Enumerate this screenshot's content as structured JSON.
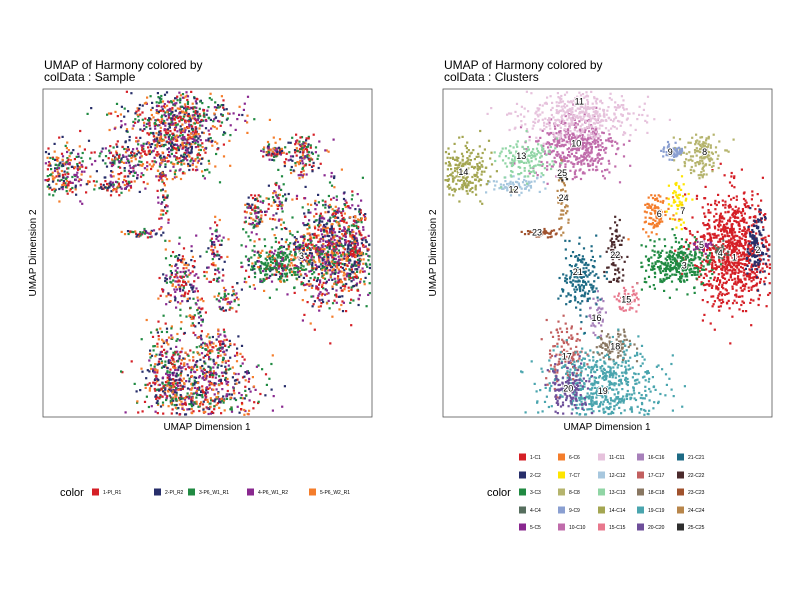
{
  "chart_data": [
    {
      "type": "scatter",
      "title_line1": "UMAP of Harmony  colored by",
      "title_line2": "colData :  Sample",
      "xlabel": "UMAP Dimension 1",
      "ylabel": "UMAP Dimension 2",
      "legend": {
        "title": "color",
        "placement": "bottom",
        "entries": [
          {
            "label": "1-PI_R1",
            "color": "#D51F26"
          },
          {
            "label": "2-PI_R2",
            "color": "#272E6A"
          },
          {
            "label": "3-P6_W1_R1",
            "color": "#208A42"
          },
          {
            "label": "4-P6_W1_R2",
            "color": "#89288F"
          },
          {
            "label": "5-P6_W2_R1",
            "color": "#F47D2B"
          }
        ]
      },
      "cluster_labels": [
        {
          "text": "3",
          "x": 18.0,
          "y": -5.0
        }
      ],
      "grid": false,
      "axis_ticks": false
    },
    {
      "type": "scatter",
      "title_line1": "UMAP of Harmony  colored by",
      "title_line2": "colData :  Clusters",
      "xlabel": "UMAP Dimension 1",
      "ylabel": "UMAP Dimension 2",
      "legend": {
        "title": "color",
        "placement": "bottom",
        "entries": [
          {
            "label": "1-C1",
            "color": "#D51F26"
          },
          {
            "label": "2-C2",
            "color": "#272E6A"
          },
          {
            "label": "3-C3",
            "color": "#208A42"
          },
          {
            "label": "4-C4",
            "color": "#566E5E"
          },
          {
            "label": "5-C5",
            "color": "#89288F"
          },
          {
            "label": "6-C6",
            "color": "#F47D2B"
          },
          {
            "label": "7-C7",
            "color": "#FEE500"
          },
          {
            "label": "8-C8",
            "color": "#B5B46D"
          },
          {
            "label": "9-C9",
            "color": "#8A9FD1"
          },
          {
            "label": "10-C10",
            "color": "#C06CAB"
          },
          {
            "label": "11-C11",
            "color": "#E6C2DC"
          },
          {
            "label": "12-C12",
            "color": "#A7C7DE"
          },
          {
            "label": "13-C13",
            "color": "#90D5A5"
          },
          {
            "label": "14-C14",
            "color": "#A4A652"
          },
          {
            "label": "15-C15",
            "color": "#E8788D"
          },
          {
            "label": "16-C16",
            "color": "#A780BA"
          },
          {
            "label": "17-C17",
            "color": "#C25F5F"
          },
          {
            "label": "18-C18",
            "color": "#897762"
          },
          {
            "label": "19-C19",
            "color": "#4AA5AE"
          },
          {
            "label": "20-C20",
            "color": "#6E4F9A"
          },
          {
            "label": "21-C21",
            "color": "#1D6A84"
          },
          {
            "label": "22-C22",
            "color": "#4B2A2C"
          },
          {
            "label": "23-C23",
            "color": "#A0522D"
          },
          {
            "label": "24-C24",
            "color": "#B8864B"
          },
          {
            "label": "25-C25",
            "color": "#2E2E2E"
          }
        ]
      },
      "cluster_labels": [
        {
          "text": "1",
          "x": 22.2,
          "y": -5.2
        },
        {
          "text": "2",
          "x": 25.2,
          "y": -4.0
        },
        {
          "text": "3",
          "x": 15.8,
          "y": -6.5
        },
        {
          "text": "4",
          "x": 20.4,
          "y": -4.5
        },
        {
          "text": "5",
          "x": 18.0,
          "y": -3.2
        },
        {
          "text": "6",
          "x": 12.6,
          "y": 1.8
        },
        {
          "text": "7",
          "x": 15.6,
          "y": 2.3
        },
        {
          "text": "8",
          "x": 18.4,
          "y": 11.8
        },
        {
          "text": "9",
          "x": 14.0,
          "y": 11.8
        },
        {
          "text": "10",
          "x": 2.0,
          "y": 13.2
        },
        {
          "text": "11",
          "x": 2.4,
          "y": 20.0
        },
        {
          "text": "12",
          "x": -6.0,
          "y": 5.8
        },
        {
          "text": "13",
          "x": -5.0,
          "y": 11.2
        },
        {
          "text": "14",
          "x": -12.4,
          "y": 8.6
        },
        {
          "text": "15",
          "x": 8.4,
          "y": -12.0
        },
        {
          "text": "16",
          "x": 4.6,
          "y": -15.0
        },
        {
          "text": "17",
          "x": 0.8,
          "y": -21.2
        },
        {
          "text": "18",
          "x": 7.0,
          "y": -19.6
        },
        {
          "text": "19",
          "x": 5.4,
          "y": -26.8
        },
        {
          "text": "20",
          "x": 1.0,
          "y": -26.4
        },
        {
          "text": "21",
          "x": 2.2,
          "y": -7.6
        },
        {
          "text": "22",
          "x": 7.0,
          "y": -4.8
        },
        {
          "text": "23",
          "x": -3.0,
          "y": -1.2
        },
        {
          "text": "24",
          "x": 0.4,
          "y": 4.4
        },
        {
          "text": "25",
          "x": 0.2,
          "y": 8.4
        }
      ],
      "grid": false,
      "axis_ticks": false
    }
  ]
}
